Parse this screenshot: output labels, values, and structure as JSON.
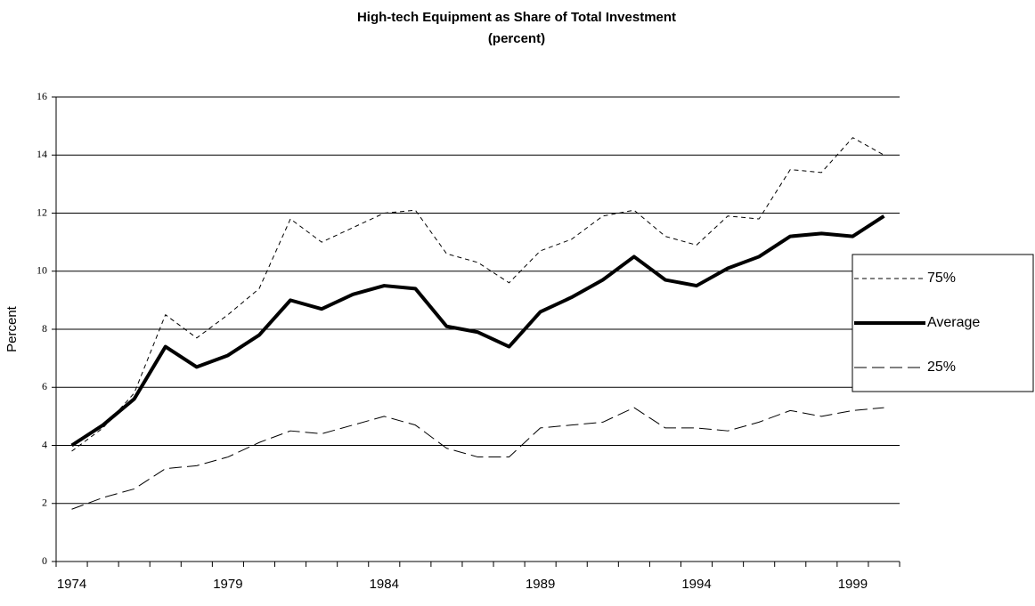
{
  "chart_data": {
    "type": "line",
    "title": "High-tech Equipment  as Share of Total Investment",
    "subtitle": "(percent)",
    "y_label": "Percent",
    "categories": [
      "1974",
      null,
      null,
      null,
      null,
      "1979",
      null,
      null,
      null,
      null,
      "1984",
      null,
      null,
      null,
      null,
      "1989",
      null,
      null,
      null,
      null,
      "1994",
      null,
      null,
      null,
      null,
      "1999",
      null
    ],
    "series": [
      {
        "name": "75%",
        "color": "#000000",
        "line_style": "short-dash",
        "values": [
          3.8,
          4.6,
          5.8,
          8.5,
          7.7,
          8.5,
          9.4,
          11.8,
          11.0,
          11.5,
          12.0,
          12.1,
          10.6,
          10.3,
          9.6,
          10.7,
          11.1,
          11.9,
          12.1,
          11.2,
          10.9,
          11.9,
          11.8,
          13.5,
          13.4,
          14.6,
          14.0
        ]
      },
      {
        "name": "Average",
        "color": "#000000",
        "line_style": "solid-bold",
        "values": [
          4.0,
          4.7,
          5.6,
          7.4,
          6.7,
          7.1,
          7.8,
          9.0,
          8.7,
          9.2,
          9.5,
          9.4,
          8.1,
          7.9,
          7.4,
          8.6,
          9.1,
          9.7,
          10.5,
          9.7,
          9.5,
          10.1,
          10.5,
          11.2,
          11.3,
          11.2,
          11.9
        ]
      },
      {
        "name": "25%",
        "color": "#000000",
        "line_style": "long-dash",
        "values": [
          1.8,
          2.2,
          2.5,
          3.2,
          3.3,
          3.6,
          4.1,
          4.5,
          4.4,
          4.7,
          5.0,
          4.7,
          3.9,
          3.6,
          3.6,
          4.6,
          4.7,
          4.8,
          5.3,
          4.6,
          4.6,
          4.5,
          4.8,
          5.2,
          5.0,
          5.2,
          5.3
        ]
      }
    ],
    "ylim": [
      0,
      16
    ],
    "yticks": [
      0,
      2,
      4,
      6,
      8,
      10,
      12,
      14,
      16
    ],
    "grid": true,
    "legend": "right"
  }
}
